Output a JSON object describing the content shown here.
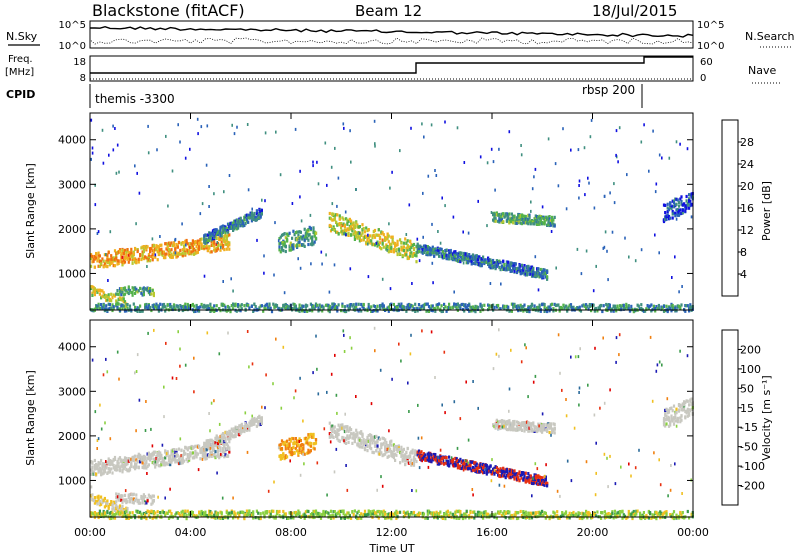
{
  "header": {
    "station": "Blackstone (fitACF)",
    "beam": "Beam 12",
    "date": "18/Jul/2015"
  },
  "top_panels": {
    "nsky_label": "N.Sky",
    "nsearch_label": "N.Search",
    "freq_label_1": "Freq.",
    "freq_label_2": "[MHz]",
    "nave_label": "Nave",
    "cpid_label": "CPID",
    "left_ticks_counts": [
      "10^5",
      "10^0"
    ],
    "right_ticks_counts": [
      "10^5",
      "10^0"
    ],
    "left_ticks_freq": [
      "18",
      "8"
    ],
    "right_ticks_nave": [
      "60",
      "0"
    ],
    "cpid_segments": [
      {
        "start_hour": 0,
        "end_hour": 21.7,
        "label": "themis -3300"
      },
      {
        "start_hour": 21.7,
        "end_hour": 24,
        "label": "rbsp 200"
      }
    ]
  },
  "chart_data": [
    {
      "type": "heatmap",
      "name": "power",
      "xlabel": "",
      "ylabel": "Slant Range [km]",
      "xlim": [
        0,
        24
      ],
      "ylim": [
        180,
        4600
      ],
      "yticks": [
        "1000",
        "2000",
        "3000",
        "4000"
      ],
      "colorbar_label": "Power [dB]",
      "colorbar_ticks": [
        "4",
        "8",
        "12",
        "16",
        "20",
        "24",
        "28"
      ],
      "colorbar_range": [
        0,
        30
      ],
      "colors": [
        "#1010e0",
        "#2a62b8",
        "#3f8f7f",
        "#54b24a",
        "#b8c830",
        "#f0b020",
        "#f07010",
        "#e81010"
      ],
      "echo_bands": [
        {
          "from_hour": 0.0,
          "to_hour": 5.5,
          "range_start": 1300,
          "range_end": 1750,
          "slope": 250,
          "level": 22
        },
        {
          "from_hour": 0.0,
          "to_hour": 1.5,
          "range_start": 650,
          "range_end": 350,
          "slope": 0,
          "level": 18
        },
        {
          "from_hour": 1.0,
          "to_hour": 2.5,
          "range_start": 650,
          "range_end": 600,
          "slope": 0,
          "level": 12
        },
        {
          "from_hour": 4.5,
          "to_hour": 6.8,
          "range_start": 1800,
          "range_end": 2400,
          "slope": 150,
          "level": 8
        },
        {
          "from_hour": 7.5,
          "to_hour": 9.0,
          "range_start": 1700,
          "range_end": 1900,
          "slope": 300,
          "level": 12
        },
        {
          "from_hour": 9.5,
          "to_hour": 13.0,
          "range_start": 2200,
          "range_end": 1500,
          "slope": 300,
          "level": 18
        },
        {
          "from_hour": 13.0,
          "to_hour": 18.2,
          "range_start": 1600,
          "range_end": 1000,
          "slope": 150,
          "level": 8
        },
        {
          "from_hour": 16.0,
          "to_hour": 18.5,
          "range_start": 2300,
          "range_end": 2200,
          "slope": 150,
          "level": 12
        },
        {
          "from_hour": 22.8,
          "to_hour": 24.0,
          "range_start": 2400,
          "range_end": 2700,
          "slope": 300,
          "level": 6
        },
        {
          "from_hour": 0.0,
          "to_hour": 24.0,
          "range_start": 250,
          "range_end": 250,
          "slope": 0,
          "level": 10
        }
      ]
    },
    {
      "type": "heatmap",
      "name": "velocity",
      "xlabel": "Time UT",
      "ylabel": "Slant Range [km]",
      "xlim": [
        0,
        24
      ],
      "ylim": [
        180,
        4600
      ],
      "xticks": [
        "00:00",
        "04:00",
        "08:00",
        "12:00",
        "16:00",
        "20:00",
        "00:00"
      ],
      "yticks": [
        "1000",
        "2000",
        "3000",
        "4000"
      ],
      "colorbar_label": "Velocity [m s⁻¹]",
      "colorbar_ticks": [
        "200",
        "100",
        "50",
        "15",
        "-15",
        "-50",
        "-100",
        "-200"
      ],
      "colors": [
        "#1a1ab4",
        "#2a6a9a",
        "#3a9a4a",
        "#8ad040",
        "#c8c8c0",
        "#f0c020",
        "#f08010",
        "#e83010",
        "#e00000"
      ],
      "groundscatter_color": "#c8c8c0"
    }
  ]
}
